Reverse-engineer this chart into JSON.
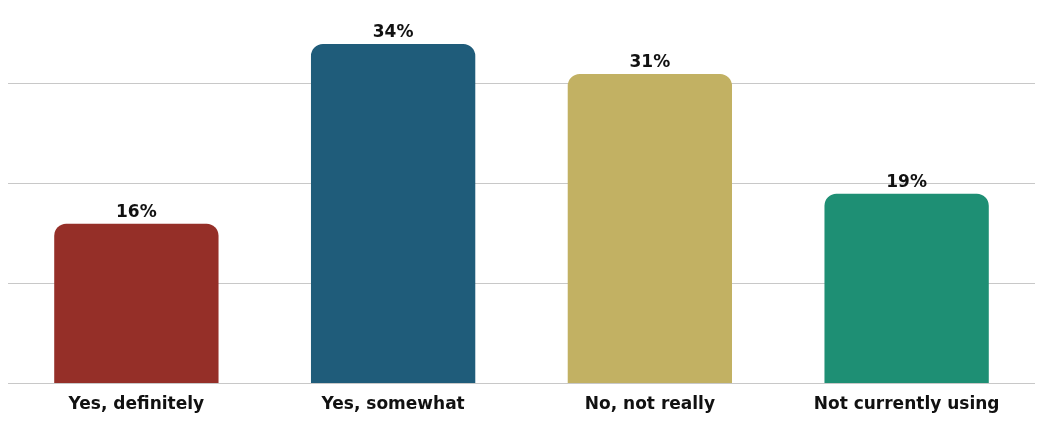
{
  "chart_data": {
    "type": "bar",
    "categories": [
      "Yes, definitely",
      "Yes, somewhat",
      "No, not really",
      "Not currently using"
    ],
    "values": [
      16,
      34,
      31,
      19
    ],
    "colors": [
      "#952f28",
      "#1f5c7a",
      "#c2b163",
      "#1e8f74"
    ],
    "value_labels": [
      "16%",
      "34%",
      "31%",
      "19%"
    ],
    "yticks": [
      0,
      {
        "value": 10,
        "label": null
      },
      {
        "value": 20,
        "label": null
      },
      {
        "value": 30,
        "label": null
      }
    ],
    "tick_labels": "x",
    "grid": "y"
  }
}
